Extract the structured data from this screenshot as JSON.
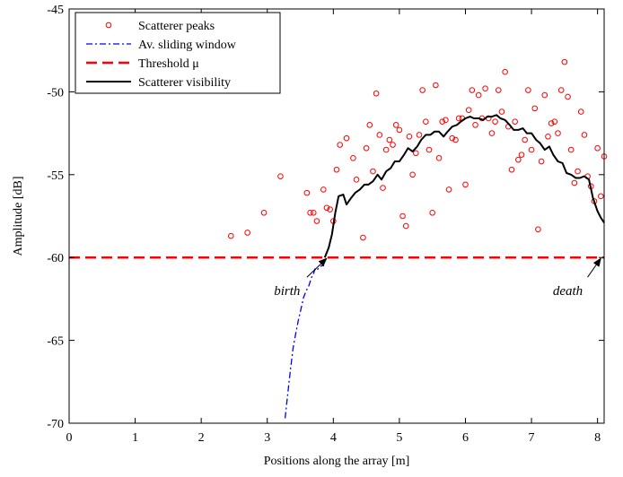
{
  "chart_data": {
    "type": "line",
    "xlabel": "Positions along the array [m]",
    "ylabel": "Amplitude [dB]",
    "xlim": [
      0,
      8.1
    ],
    "ylim": [
      -70,
      -45
    ],
    "xticks": [
      0,
      1,
      2,
      3,
      4,
      5,
      6,
      7,
      8
    ],
    "yticks": [
      -70,
      -65,
      -60,
      -55,
      -50,
      -45
    ],
    "grid": false,
    "legend_position": "top-left",
    "legend": [
      {
        "label": "Scatterer peaks",
        "style": "circle",
        "color": "#ff0000"
      },
      {
        "label": "Av. sliding window",
        "style": "dashdot",
        "color": "#0000ff"
      },
      {
        "label": "Threshold μ",
        "style": "dashed",
        "color": "#ff0000"
      },
      {
        "label": "Scatterer visibility",
        "style": "solid",
        "color": "#000000"
      }
    ],
    "series": [
      {
        "name": "Scatterer peaks",
        "kind": "scatter",
        "color": "#ff0000",
        "points": [
          [
            2.45,
            -58.7
          ],
          [
            2.7,
            -58.5
          ],
          [
            2.95,
            -57.3
          ],
          [
            3.2,
            -55.1
          ],
          [
            3.6,
            -56.1
          ],
          [
            3.65,
            -57.3
          ],
          [
            3.7,
            -57.3
          ],
          [
            3.75,
            -57.8
          ],
          [
            3.85,
            -55.9
          ],
          [
            3.9,
            -57.0
          ],
          [
            3.95,
            -57.1
          ],
          [
            4.0,
            -57.8
          ],
          [
            4.05,
            -54.7
          ],
          [
            4.1,
            -53.2
          ],
          [
            4.2,
            -52.8
          ],
          [
            4.3,
            -54.0
          ],
          [
            4.35,
            -55.3
          ],
          [
            4.45,
            -58.8
          ],
          [
            4.5,
            -53.4
          ],
          [
            4.55,
            -52.0
          ],
          [
            4.6,
            -54.8
          ],
          [
            4.65,
            -50.1
          ],
          [
            4.7,
            -52.6
          ],
          [
            4.75,
            -55.8
          ],
          [
            4.8,
            -53.5
          ],
          [
            4.85,
            -52.9
          ],
          [
            4.9,
            -53.2
          ],
          [
            4.95,
            -52.0
          ],
          [
            5.0,
            -52.3
          ],
          [
            5.05,
            -57.5
          ],
          [
            5.1,
            -58.1
          ],
          [
            5.15,
            -52.7
          ],
          [
            5.2,
            -55.0
          ],
          [
            5.25,
            -53.7
          ],
          [
            5.3,
            -52.6
          ],
          [
            5.35,
            -49.9
          ],
          [
            5.4,
            -51.8
          ],
          [
            5.45,
            -53.5
          ],
          [
            5.5,
            -57.3
          ],
          [
            5.55,
            -49.6
          ],
          [
            5.6,
            -54.0
          ],
          [
            5.65,
            -51.8
          ],
          [
            5.7,
            -51.7
          ],
          [
            5.75,
            -55.9
          ],
          [
            5.8,
            -52.8
          ],
          [
            5.85,
            -52.9
          ],
          [
            5.9,
            -51.6
          ],
          [
            5.95,
            -51.6
          ],
          [
            6.0,
            -55.6
          ],
          [
            6.05,
            -51.1
          ],
          [
            6.1,
            -49.9
          ],
          [
            6.15,
            -52.0
          ],
          [
            6.2,
            -50.2
          ],
          [
            6.25,
            -51.6
          ],
          [
            6.3,
            -49.8
          ],
          [
            6.35,
            -51.6
          ],
          [
            6.4,
            -52.5
          ],
          [
            6.45,
            -51.8
          ],
          [
            6.5,
            -49.9
          ],
          [
            6.55,
            -51.2
          ],
          [
            6.6,
            -48.8
          ],
          [
            6.65,
            -52.1
          ],
          [
            6.7,
            -54.7
          ],
          [
            6.75,
            -51.8
          ],
          [
            6.8,
            -54.1
          ],
          [
            6.85,
            -53.8
          ],
          [
            6.9,
            -52.9
          ],
          [
            6.95,
            -49.9
          ],
          [
            7.0,
            -53.5
          ],
          [
            7.05,
            -51.0
          ],
          [
            7.1,
            -58.3
          ],
          [
            7.15,
            -54.2
          ],
          [
            7.2,
            -50.2
          ],
          [
            7.25,
            -52.7
          ],
          [
            7.3,
            -51.9
          ],
          [
            7.35,
            -51.8
          ],
          [
            7.4,
            -52.5
          ],
          [
            7.45,
            -49.9
          ],
          [
            7.5,
            -48.2
          ],
          [
            7.55,
            -50.3
          ],
          [
            7.6,
            -53.5
          ],
          [
            7.65,
            -55.5
          ],
          [
            7.7,
            -54.8
          ],
          [
            7.75,
            -51.2
          ],
          [
            7.8,
            -52.6
          ],
          [
            7.85,
            -55.1
          ],
          [
            7.9,
            -55.7
          ],
          [
            7.95,
            -56.6
          ],
          [
            8.0,
            -53.4
          ],
          [
            8.05,
            -56.3
          ],
          [
            8.1,
            -53.9
          ]
        ]
      },
      {
        "name": "Av. sliding window",
        "kind": "line",
        "style": "dashdot",
        "color": "#0000ff",
        "points": [
          [
            3.27,
            -69.7
          ],
          [
            3.31,
            -68.2
          ],
          [
            3.35,
            -66.8
          ],
          [
            3.39,
            -65.5
          ],
          [
            3.43,
            -64.6
          ],
          [
            3.47,
            -63.8
          ],
          [
            3.51,
            -63.1
          ],
          [
            3.55,
            -62.4
          ],
          [
            3.59,
            -62.0
          ],
          [
            3.63,
            -61.7
          ],
          [
            3.67,
            -61.2
          ],
          [
            3.7,
            -61.0
          ],
          [
            3.72,
            -60.7
          ],
          [
            3.75,
            -60.8
          ],
          [
            3.78,
            -60.6
          ],
          [
            3.82,
            -60.5
          ],
          [
            3.86,
            -60.5
          ]
        ]
      },
      {
        "name": "Threshold μ",
        "kind": "hline",
        "style": "dashed",
        "color": "#ff0000",
        "y": -60
      },
      {
        "name": "Scatterer visibility",
        "kind": "line",
        "style": "solid",
        "color": "#000000",
        "points": [
          [
            3.87,
            -60.0
          ],
          [
            3.93,
            -59.4
          ],
          [
            3.98,
            -58.6
          ],
          [
            4.03,
            -57.3
          ],
          [
            4.08,
            -56.3
          ],
          [
            4.15,
            -56.2
          ],
          [
            4.2,
            -56.8
          ],
          [
            4.27,
            -56.4
          ],
          [
            4.33,
            -56.1
          ],
          [
            4.4,
            -55.9
          ],
          [
            4.47,
            -55.6
          ],
          [
            4.53,
            -55.6
          ],
          [
            4.6,
            -55.4
          ],
          [
            4.67,
            -55.0
          ],
          [
            4.73,
            -55.3
          ],
          [
            4.8,
            -54.8
          ],
          [
            4.87,
            -54.6
          ],
          [
            4.93,
            -54.2
          ],
          [
            5.0,
            -54.2
          ],
          [
            5.07,
            -53.8
          ],
          [
            5.13,
            -53.4
          ],
          [
            5.2,
            -53.6
          ],
          [
            5.27,
            -53.3
          ],
          [
            5.33,
            -52.9
          ],
          [
            5.4,
            -52.6
          ],
          [
            5.47,
            -52.6
          ],
          [
            5.53,
            -52.4
          ],
          [
            5.6,
            -52.4
          ],
          [
            5.67,
            -52.7
          ],
          [
            5.73,
            -52.4
          ],
          [
            5.8,
            -52.1
          ],
          [
            5.87,
            -52.0
          ],
          [
            5.93,
            -51.8
          ],
          [
            6.0,
            -51.6
          ],
          [
            6.07,
            -51.5
          ],
          [
            6.13,
            -51.6
          ],
          [
            6.2,
            -51.6
          ],
          [
            6.27,
            -51.7
          ],
          [
            6.33,
            -51.5
          ],
          [
            6.4,
            -51.5
          ],
          [
            6.47,
            -51.4
          ],
          [
            6.53,
            -51.6
          ],
          [
            6.6,
            -51.7
          ],
          [
            6.67,
            -52.0
          ],
          [
            6.73,
            -52.3
          ],
          [
            6.8,
            -52.3
          ],
          [
            6.87,
            -52.2
          ],
          [
            6.93,
            -52.5
          ],
          [
            7.0,
            -52.5
          ],
          [
            7.07,
            -52.9
          ],
          [
            7.13,
            -53.1
          ],
          [
            7.2,
            -53.5
          ],
          [
            7.27,
            -53.3
          ],
          [
            7.33,
            -53.8
          ],
          [
            7.4,
            -54.2
          ],
          [
            7.47,
            -54.3
          ],
          [
            7.53,
            -54.9
          ],
          [
            7.6,
            -55.0
          ],
          [
            7.67,
            -55.2
          ],
          [
            7.73,
            -55.2
          ],
          [
            7.8,
            -55.1
          ],
          [
            7.87,
            -55.3
          ],
          [
            7.93,
            -56.4
          ],
          [
            8.0,
            -57.2
          ],
          [
            8.05,
            -57.6
          ],
          [
            8.1,
            -57.9
          ]
        ]
      }
    ],
    "annotations": [
      {
        "text": "birth",
        "text_xy": [
          3.3,
          -61.3
        ],
        "arrow_to": [
          3.9,
          -60.05
        ]
      },
      {
        "text": "death",
        "text_xy": [
          7.55,
          -61.3
        ],
        "arrow_to": [
          8.05,
          -60.05
        ]
      }
    ]
  }
}
